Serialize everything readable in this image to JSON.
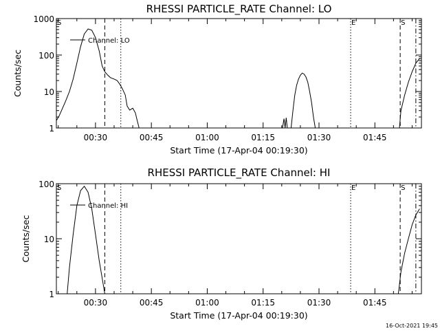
{
  "footer_timestamp": "16-Oct-2021 19:45",
  "chart_data": [
    {
      "type": "line",
      "title": "RHESSI PARTICLE_RATE Channel: LO",
      "xlabel": "Start Time (17-Apr-04 00:19:30)",
      "ylabel": "Counts/sec",
      "y_scale": "log",
      "ylim": [
        1,
        1000
      ],
      "y_ticks": [
        "1",
        "10",
        "100",
        "1000"
      ],
      "xlim_min": [
        19.5,
        117.5
      ],
      "x_ticks": [
        {
          "min": 30,
          "label": "00:30"
        },
        {
          "min": 45,
          "label": "00:45"
        },
        {
          "min": 60,
          "label": "01:00"
        },
        {
          "min": 75,
          "label": "01:15"
        },
        {
          "min": 90,
          "label": "01:30"
        },
        {
          "min": 105,
          "label": "01:45"
        }
      ],
      "legend": "Channel: LO",
      "legend_position": "top-left",
      "markers": [
        {
          "min": 19.5,
          "style": "dashed",
          "label": "S"
        },
        {
          "min": 32.5,
          "style": "dashed",
          "label": ""
        },
        {
          "min": 36.8,
          "style": "dotted",
          "label": ""
        },
        {
          "min": 98.5,
          "style": "dotted",
          "label": "E"
        },
        {
          "min": 111.8,
          "style": "dashed",
          "label": "S"
        },
        {
          "min": 116.0,
          "style": "dashdot",
          "label": ""
        }
      ],
      "segments": [
        [
          [
            19.5,
            1.6
          ],
          [
            20.2,
            2.1
          ],
          [
            21,
            3.2
          ],
          [
            22,
            5.5
          ],
          [
            23,
            10
          ],
          [
            24,
            22
          ],
          [
            25,
            60
          ],
          [
            26,
            170
          ],
          [
            27,
            380
          ],
          [
            28,
            520
          ],
          [
            29,
            480
          ],
          [
            30,
            300
          ],
          [
            31,
            130
          ],
          [
            31.8,
            50
          ],
          [
            32.5,
            35
          ],
          [
            33.3,
            28
          ],
          [
            34,
            24
          ],
          [
            35,
            22
          ],
          [
            35.8,
            20
          ],
          [
            36.5,
            16
          ],
          [
            37.2,
            12
          ],
          [
            38,
            8
          ],
          [
            38.5,
            4
          ],
          [
            39.2,
            3.1
          ],
          [
            40,
            3.5
          ],
          [
            40.7,
            2.6
          ],
          [
            41.2,
            1.6
          ],
          [
            41.7,
            1
          ]
        ],
        [
          [
            80.2,
            1
          ],
          [
            80.6,
            1.8
          ],
          [
            80.9,
            1
          ],
          [
            81.2,
            1.9
          ],
          [
            81.5,
            1
          ],
          [
            82.5,
            1
          ],
          [
            83,
            3
          ],
          [
            83.5,
            8
          ],
          [
            84,
            15
          ],
          [
            84.5,
            22
          ],
          [
            85,
            28
          ],
          [
            85.5,
            32
          ],
          [
            86,
            30
          ],
          [
            86.5,
            25
          ],
          [
            87,
            18
          ],
          [
            87.5,
            10
          ],
          [
            88,
            5
          ],
          [
            88.5,
            2
          ],
          [
            89,
            1
          ]
        ],
        [
          [
            111.6,
            1
          ],
          [
            112,
            3
          ],
          [
            113,
            8
          ],
          [
            114,
            18
          ],
          [
            115,
            35
          ],
          [
            116,
            60
          ],
          [
            117,
            80
          ]
        ]
      ]
    },
    {
      "type": "line",
      "title": "RHESSI PARTICLE_RATE Channel: HI",
      "xlabel": "Start Time (17-Apr-04 00:19:30)",
      "ylabel": "Counts/sec",
      "y_scale": "log",
      "ylim": [
        1,
        100
      ],
      "y_ticks": [
        "1",
        "10",
        "100"
      ],
      "xlim_min": [
        19.5,
        117.5
      ],
      "x_ticks": [
        {
          "min": 30,
          "label": "00:30"
        },
        {
          "min": 45,
          "label": "00:45"
        },
        {
          "min": 60,
          "label": "01:00"
        },
        {
          "min": 75,
          "label": "01:15"
        },
        {
          "min": 90,
          "label": "01:30"
        },
        {
          "min": 105,
          "label": "01:45"
        }
      ],
      "legend": "Channel: HI",
      "legend_position": "top-left",
      "markers": [
        {
          "min": 19.5,
          "style": "dashed",
          "label": "S"
        },
        {
          "min": 32.5,
          "style": "dashed",
          "label": ""
        },
        {
          "min": 36.8,
          "style": "dotted",
          "label": ""
        },
        {
          "min": 98.5,
          "style": "dotted",
          "label": "E"
        },
        {
          "min": 111.8,
          "style": "dashed",
          "label": "S"
        },
        {
          "min": 116.0,
          "style": "dashdot",
          "label": ""
        }
      ],
      "segments": [
        [
          [
            22.4,
            1
          ],
          [
            23,
            3
          ],
          [
            24,
            12
          ],
          [
            25,
            40
          ],
          [
            26,
            75
          ],
          [
            27,
            90
          ],
          [
            28,
            70
          ],
          [
            29,
            35
          ],
          [
            30,
            12
          ],
          [
            31,
            4
          ],
          [
            32,
            1.6
          ],
          [
            32.5,
            1
          ]
        ],
        [
          [
            111.3,
            1
          ],
          [
            112,
            2.5
          ],
          [
            113,
            5.5
          ],
          [
            114,
            10
          ],
          [
            115,
            18
          ],
          [
            116,
            27
          ],
          [
            117,
            35
          ]
        ]
      ]
    }
  ]
}
